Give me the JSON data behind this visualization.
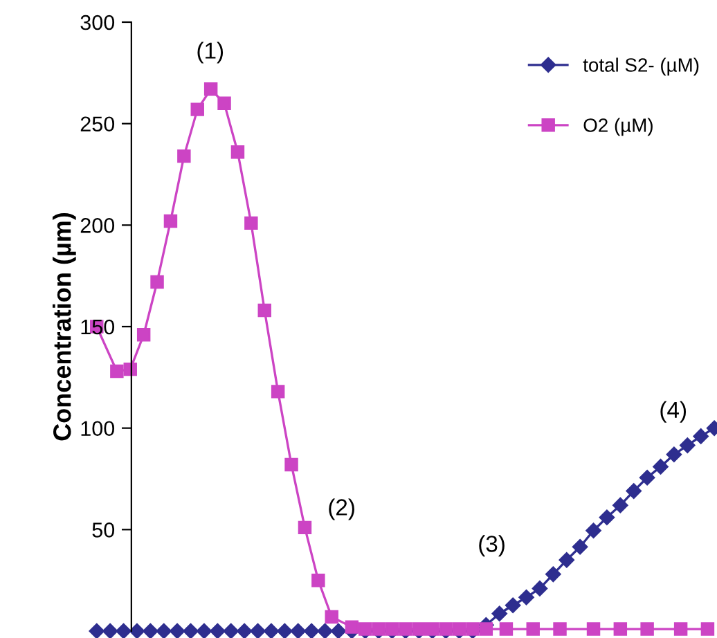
{
  "chart_data": {
    "type": "line",
    "ylabel": "Concentration (µm)",
    "ylim": [
      0,
      300
    ],
    "yticks": [
      50,
      100,
      150,
      200,
      250,
      300
    ],
    "tick_labels": "y",
    "grid": false,
    "legend": "top right",
    "categories": [
      null,
      null,
      null,
      null,
      null,
      null,
      null,
      null,
      null,
      null,
      null,
      null,
      null,
      null,
      null,
      null,
      null,
      null,
      null,
      null,
      null,
      null,
      null,
      null,
      null,
      null,
      null,
      null,
      null,
      null,
      null,
      null,
      null,
      null,
      null,
      null,
      null,
      null,
      null,
      null,
      null,
      null,
      null,
      null,
      null,
      null,
      null,
      null,
      null,
      null,
      null,
      null,
      null,
      null,
      null,
      null,
      null,
      null,
      null,
      null,
      null,
      null,
      null,
      null,
      null,
      null,
      null,
      null,
      null,
      null,
      null,
      null,
      null,
      null,
      null,
      null,
      null,
      null,
      null,
      null,
      null,
      null,
      null,
      null,
      null,
      null,
      null,
      null,
      null,
      null,
      null,
      null,
      null
    ],
    "series": [
      {
        "name": "total S2- (µM)",
        "color": "#2e2e8f",
        "marker": "diamond",
        "values": [
          0,
          null,
          0,
          null,
          0,
          null,
          0,
          null,
          0,
          null,
          0,
          null,
          0,
          null,
          0,
          null,
          0,
          null,
          0,
          null,
          0,
          null,
          0,
          null,
          0,
          null,
          0,
          null,
          0,
          null,
          0,
          null,
          0,
          null,
          0,
          null,
          0,
          null,
          0,
          null,
          0,
          null,
          0,
          null,
          0,
          null,
          0,
          null,
          0,
          null,
          0,
          null,
          0,
          null,
          0,
          null,
          0,
          null,
          3,
          null,
          8.6,
          null,
          12.7,
          null,
          16.6,
          null,
          21,
          null,
          28,
          null,
          35,
          null,
          41.5,
          null,
          49.5,
          null,
          56,
          null,
          62,
          null,
          69,
          null,
          75.6,
          null,
          81,
          null,
          87,
          null,
          91.5,
          null,
          96,
          null,
          100
        ]
      },
      {
        "name": "O2 (µM)",
        "color": "#cc44c4",
        "marker": "square",
        "values": [
          150,
          null,
          null,
          128,
          null,
          129,
          null,
          146,
          null,
          172,
          null,
          202,
          null,
          234,
          null,
          257,
          null,
          267,
          null,
          260,
          null,
          236,
          null,
          201,
          null,
          158,
          null,
          118,
          null,
          82,
          null,
          51,
          null,
          25,
          null,
          7,
          null,
          null,
          2,
          null,
          1,
          null,
          1,
          null,
          1,
          null,
          1,
          null,
          1,
          null,
          1,
          null,
          1,
          null,
          1,
          null,
          1,
          null,
          1,
          null,
          null,
          1,
          null,
          null,
          null,
          1,
          null,
          null,
          null,
          1,
          null,
          null,
          null,
          null,
          1,
          null,
          null,
          null,
          1,
          null,
          null,
          null,
          1,
          null,
          null,
          null,
          null,
          1,
          null,
          null,
          null,
          1,
          null
        ]
      }
    ],
    "annotations": [
      "(1)",
      "(2)",
      "(3)",
      "(4)"
    ]
  }
}
